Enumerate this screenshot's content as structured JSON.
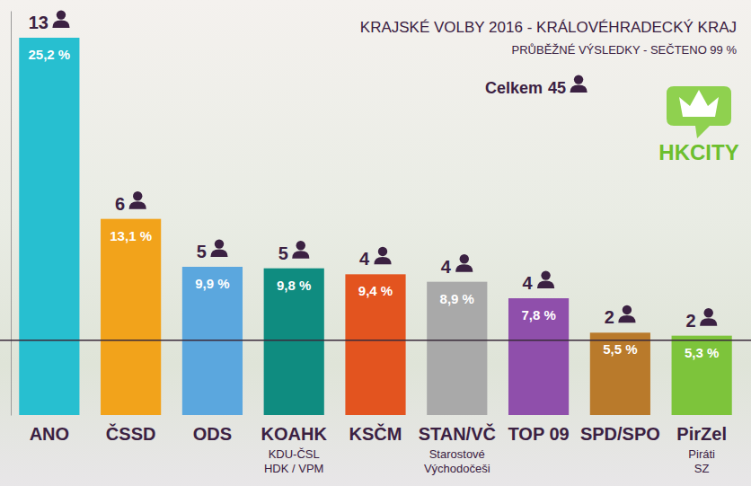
{
  "chart_data": {
    "type": "bar",
    "title": "KRAJSKÉ VOLBY 2016 - KRÁLOVÉHRADECKÝ KRAJ",
    "subtitle": "PRŮBĚŽNÉ VÝSLEDKY - SEČTENO 99 %",
    "total_label": "Celkem",
    "total_seats": 45,
    "logo": "HKCITY",
    "categories": [
      "ANO",
      "ČSSD",
      "ODS",
      "KOAHK",
      "KSČM",
      "STAN/VČ",
      "TOP 09",
      "SPD/SPO",
      "PirZel"
    ],
    "category_notes": [
      null,
      null,
      null,
      [
        "KDU-ČSL",
        "HDK / VPM"
      ],
      null,
      [
        "Starostové",
        "Východočeši"
      ],
      null,
      null,
      [
        "Piráti",
        "SZ"
      ]
    ],
    "values": [
      25.2,
      13.1,
      9.9,
      9.8,
      9.4,
      8.9,
      7.8,
      5.5,
      5.3
    ],
    "value_labels": [
      "25,2 %",
      "13,1 %",
      "9,9 %",
      "9,8 %",
      "9,4 %",
      "8,9 %",
      "7,8 %",
      "5,5 %",
      "5,3 %"
    ],
    "seats": [
      13,
      6,
      5,
      5,
      4,
      4,
      4,
      2,
      2
    ],
    "colors": [
      "#27bfd0",
      "#f2a31b",
      "#5ba7de",
      "#0f8c80",
      "#e3541f",
      "#a9a9a9",
      "#8f4fab",
      "#b97a2b",
      "#7dc43b"
    ],
    "threshold": 5,
    "ylim": [
      0,
      27
    ],
    "yticks": [],
    "tick_labels": false,
    "data_labels": true,
    "grid": false
  }
}
